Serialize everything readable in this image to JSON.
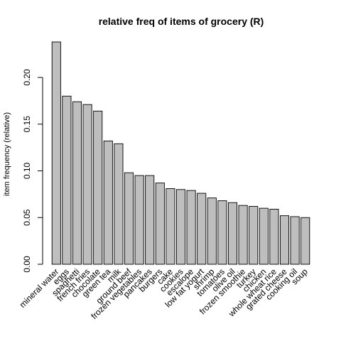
{
  "chart_data": {
    "type": "bar",
    "title": "relative freq of items of grocery (R)",
    "xlabel": "",
    "ylabel": "item frequency (relative)",
    "ylim": [
      0,
      0.24
    ],
    "yticks": [
      "0.00",
      "0.05",
      "0.10",
      "0.15",
      "0.20"
    ],
    "ytick_values": [
      0,
      0.05,
      0.1,
      0.15,
      0.2
    ],
    "categories": [
      "mineral water",
      "eggs",
      "spaghetti",
      "french fries",
      "chocolate",
      "green tea",
      "milk",
      "ground beef",
      "frozen vegetables",
      "pancakes",
      "burgers",
      "cake",
      "cookies",
      "escalope",
      "low fat yogurt",
      "shrimp",
      "tomatoes",
      "olive oil",
      "frozen smoothie",
      "turkey",
      "chicken",
      "whole wheat rice",
      "grated cheese",
      "cooking oil",
      "soup"
    ],
    "values": [
      0.238,
      0.18,
      0.174,
      0.171,
      0.164,
      0.132,
      0.129,
      0.098,
      0.095,
      0.095,
      0.087,
      0.081,
      0.08,
      0.079,
      0.076,
      0.071,
      0.068,
      0.066,
      0.063,
      0.062,
      0.06,
      0.059,
      0.052,
      0.051,
      0.05
    ],
    "grid": false,
    "legend": "none",
    "colors": {
      "bar_fill": "#bebebe",
      "bar_stroke": "#000000"
    }
  }
}
